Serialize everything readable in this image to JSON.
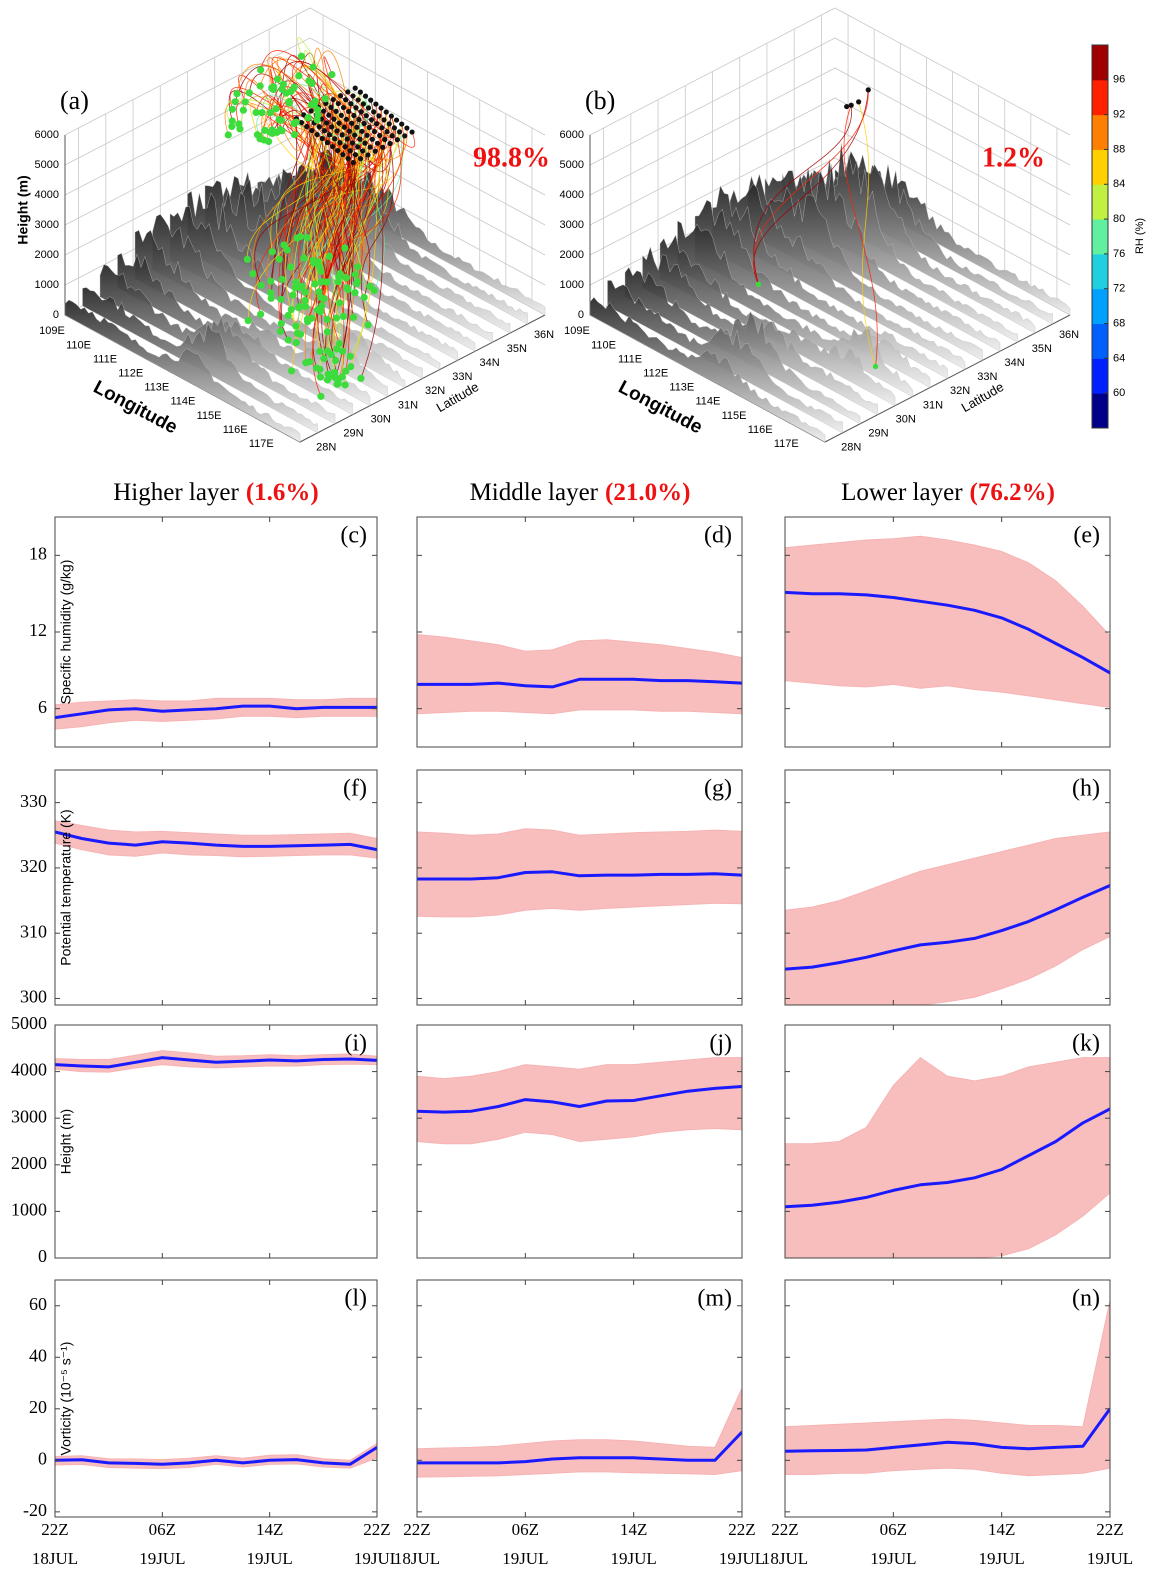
{
  "panels_3d": {
    "zlabel": "Height (m)",
    "xlabel": "Longitude",
    "ylabel": "Latitude",
    "zlim": [
      0,
      6000
    ],
    "zticks": [
      0,
      1000,
      2000,
      3000,
      4000,
      5000,
      6000
    ],
    "xticks": [
      "109E",
      "110E",
      "111E",
      "112E",
      "113E",
      "114E",
      "115E",
      "116E",
      "117E"
    ],
    "yticks": [
      "28N",
      "29N",
      "30N",
      "31N",
      "32N",
      "33N",
      "34N",
      "35N",
      "36N"
    ],
    "panels": [
      {
        "label": "(a)",
        "percent": "98.8%"
      },
      {
        "label": "(b)",
        "percent": "1.2%"
      }
    ],
    "percent_color": "#ee1111"
  },
  "colorbar": {
    "label": "RH (%)",
    "ylim": [
      56,
      100
    ],
    "yticks": [
      60,
      64,
      68,
      72,
      76,
      80,
      84,
      88,
      92,
      96
    ],
    "colors": [
      "#00008b",
      "#0020ff",
      "#0060ff",
      "#00a0ff",
      "#20d0e0",
      "#60f0a0",
      "#c0f040",
      "#ffd000",
      "#ff8000",
      "#ff2000",
      "#a00000"
    ]
  },
  "columns": [
    {
      "title": "Higher layer",
      "percent": "(1.6%)"
    },
    {
      "title": "Middle layer",
      "percent": "(21.0%)"
    },
    {
      "title": "Lower layer",
      "percent": "(76.2%)"
    }
  ],
  "time_axis": {
    "xlim": [
      0,
      24
    ],
    "xticks": [
      {
        "value": 0,
        "label": "22Z 18JUL"
      },
      {
        "value": 8,
        "label": "06Z 19JUL"
      },
      {
        "value": 16,
        "label": "14Z 19JUL"
      },
      {
        "value": 24,
        "label": "22Z 19JUL"
      }
    ]
  },
  "chart_data": [
    {
      "type": "line",
      "panel": "(c)",
      "ylabel": "Specific humidity (g/kg)",
      "ylim": [
        3,
        21
      ],
      "yticks": [
        6,
        12,
        18
      ],
      "x": [
        0,
        2,
        4,
        6,
        8,
        10,
        12,
        14,
        16,
        18,
        20,
        22,
        24
      ],
      "band": {
        "color": "#f7b3b3",
        "lower": [
          4.4,
          4.6,
          4.9,
          5.1,
          5.0,
          5.1,
          5.2,
          5.4,
          5.4,
          5.3,
          5.4,
          5.4,
          5.4
        ],
        "upper": [
          6.3,
          6.5,
          6.6,
          6.7,
          6.6,
          6.6,
          6.8,
          6.8,
          6.8,
          6.7,
          6.7,
          6.8,
          6.8
        ]
      },
      "series": [
        {
          "color": "#1a1aff",
          "values": [
            5.3,
            5.6,
            5.9,
            6.0,
            5.8,
            5.9,
            6.0,
            6.2,
            6.2,
            6.0,
            6.1,
            6.1,
            6.1
          ]
        }
      ]
    },
    {
      "type": "line",
      "panel": "(d)",
      "ylim": [
        3,
        21
      ],
      "x": [
        0,
        2,
        4,
        6,
        8,
        10,
        12,
        14,
        16,
        18,
        20,
        22,
        24
      ],
      "band": {
        "color": "#f7b3b3",
        "lower": [
          5.6,
          5.7,
          5.8,
          5.8,
          5.7,
          5.6,
          5.9,
          5.9,
          5.9,
          5.8,
          5.8,
          5.7,
          5.6
        ],
        "upper": [
          11.8,
          11.6,
          11.3,
          11.0,
          10.5,
          10.6,
          11.3,
          11.4,
          11.2,
          11.0,
          10.7,
          10.4,
          10.0
        ]
      },
      "series": [
        {
          "color": "#1a1aff",
          "values": [
            7.9,
            7.9,
            7.9,
            8.0,
            7.8,
            7.7,
            8.3,
            8.3,
            8.3,
            8.2,
            8.2,
            8.1,
            8.0
          ]
        }
      ]
    },
    {
      "type": "line",
      "panel": "(e)",
      "ylim": [
        3,
        21
      ],
      "x": [
        0,
        2,
        4,
        6,
        8,
        10,
        12,
        14,
        16,
        18,
        20,
        22,
        24
      ],
      "band": {
        "color": "#f7b3b3",
        "lower": [
          8.2,
          8.0,
          7.8,
          7.7,
          7.9,
          7.6,
          7.8,
          7.5,
          7.3,
          7.0,
          6.7,
          6.4,
          6.1
        ],
        "upper": [
          18.6,
          18.8,
          19.0,
          19.2,
          19.3,
          19.5,
          19.2,
          18.8,
          18.3,
          17.4,
          16.0,
          14.0,
          11.7
        ]
      },
      "series": [
        {
          "color": "#1a1aff",
          "values": [
            15.1,
            15.0,
            15.0,
            14.9,
            14.7,
            14.4,
            14.1,
            13.7,
            13.1,
            12.2,
            11.1,
            10.0,
            8.8
          ]
        }
      ]
    },
    {
      "type": "line",
      "panel": "(f)",
      "ylabel": "Potential temperature (K)",
      "ylim": [
        299,
        335
      ],
      "yticks": [
        300,
        310,
        320,
        330
      ],
      "x": [
        0,
        2,
        4,
        6,
        8,
        10,
        12,
        14,
        16,
        18,
        20,
        22,
        24
      ],
      "band": {
        "color": "#f7b3b3",
        "lower": [
          323.8,
          322.8,
          322.0,
          321.8,
          322.3,
          322.0,
          321.9,
          321.7,
          321.8,
          321.9,
          322.0,
          322.0,
          321.5
        ],
        "upper": [
          327.2,
          326.5,
          325.8,
          325.5,
          325.6,
          325.4,
          325.2,
          325.0,
          325.0,
          325.1,
          325.2,
          325.3,
          324.5
        ]
      },
      "series": [
        {
          "color": "#1a1aff",
          "values": [
            325.5,
            324.5,
            323.8,
            323.5,
            324.0,
            323.8,
            323.5,
            323.3,
            323.3,
            323.4,
            323.5,
            323.6,
            322.8
          ]
        }
      ]
    },
    {
      "type": "line",
      "panel": "(g)",
      "ylim": [
        299,
        335
      ],
      "x": [
        0,
        2,
        4,
        6,
        8,
        10,
        12,
        14,
        16,
        18,
        20,
        22,
        24
      ],
      "band": {
        "color": "#f7b3b3",
        "lower": [
          312.6,
          312.5,
          312.5,
          312.8,
          313.5,
          313.8,
          313.5,
          313.8,
          314.0,
          314.2,
          314.4,
          314.6,
          314.5
        ],
        "upper": [
          325.5,
          325.3,
          325.0,
          325.2,
          326.0,
          325.8,
          325.0,
          325.2,
          325.4,
          325.5,
          325.6,
          325.8,
          325.6
        ]
      },
      "series": [
        {
          "color": "#1a1aff",
          "values": [
            318.3,
            318.3,
            318.3,
            318.5,
            319.3,
            319.4,
            318.8,
            318.9,
            318.9,
            319.0,
            319.0,
            319.1,
            318.9
          ]
        }
      ]
    },
    {
      "type": "line",
      "panel": "(h)",
      "ylim": [
        299,
        335
      ],
      "x": [
        0,
        2,
        4,
        6,
        8,
        10,
        12,
        14,
        16,
        18,
        20,
        22,
        24
      ],
      "band": {
        "color": "#f7b3b3",
        "lower": [
          297.8,
          297.6,
          297.8,
          298.0,
          298.5,
          299.0,
          299.5,
          300.2,
          301.5,
          303.0,
          305.0,
          307.5,
          309.5
        ],
        "upper": [
          313.5,
          314.0,
          315.0,
          316.5,
          318.0,
          319.5,
          320.5,
          321.5,
          322.5,
          323.5,
          324.5,
          325.0,
          325.5
        ]
      },
      "series": [
        {
          "color": "#1a1aff",
          "values": [
            304.5,
            304.8,
            305.5,
            306.3,
            307.3,
            308.2,
            308.6,
            309.2,
            310.4,
            311.8,
            313.6,
            315.5,
            317.3
          ]
        }
      ]
    },
    {
      "type": "line",
      "panel": "(i)",
      "ylabel": "Height (m)",
      "ylim": [
        0,
        5000
      ],
      "yticks": [
        0,
        1000,
        2000,
        3000,
        4000,
        5000
      ],
      "x": [
        0,
        2,
        4,
        6,
        8,
        10,
        12,
        14,
        16,
        18,
        20,
        22,
        24
      ],
      "band": {
        "color": "#f7b3b3",
        "lower": [
          4050,
          4000,
          3990,
          4080,
          4150,
          4100,
          4080,
          4100,
          4120,
          4120,
          4150,
          4160,
          4150
        ],
        "upper": [
          4280,
          4260,
          4260,
          4350,
          4450,
          4400,
          4330,
          4340,
          4360,
          4340,
          4360,
          4380,
          4330
        ]
      },
      "series": [
        {
          "color": "#1a1aff",
          "values": [
            4150,
            4120,
            4100,
            4200,
            4300,
            4250,
            4200,
            4220,
            4250,
            4230,
            4260,
            4270,
            4240
          ]
        }
      ]
    },
    {
      "type": "line",
      "panel": "(j)",
      "ylim": [
        0,
        5000
      ],
      "x": [
        0,
        2,
        4,
        6,
        8,
        10,
        12,
        14,
        16,
        18,
        20,
        22,
        24
      ],
      "band": {
        "color": "#f7b3b3",
        "lower": [
          2500,
          2450,
          2450,
          2550,
          2700,
          2650,
          2500,
          2550,
          2600,
          2700,
          2750,
          2780,
          2750
        ],
        "upper": [
          3900,
          3850,
          3900,
          4000,
          4150,
          4100,
          4050,
          4150,
          4150,
          4200,
          4250,
          4300,
          4300
        ]
      },
      "series": [
        {
          "color": "#1a1aff",
          "values": [
            3150,
            3130,
            3150,
            3250,
            3400,
            3350,
            3250,
            3370,
            3380,
            3480,
            3580,
            3640,
            3680
          ]
        }
      ]
    },
    {
      "type": "line",
      "panel": "(k)",
      "ylim": [
        0,
        5000
      ],
      "x": [
        0,
        2,
        4,
        6,
        8,
        10,
        12,
        14,
        16,
        18,
        20,
        22,
        24
      ],
      "band": {
        "color": "#f7b3b3",
        "lower": [
          0,
          0,
          0,
          0,
          0,
          0,
          0,
          0,
          50,
          200,
          500,
          900,
          1400
        ],
        "upper": [
          2450,
          2450,
          2500,
          2800,
          3700,
          4300,
          3900,
          3800,
          3900,
          4100,
          4200,
          4300,
          4300
        ]
      },
      "series": [
        {
          "color": "#1a1aff",
          "values": [
            1100,
            1130,
            1200,
            1300,
            1450,
            1570,
            1620,
            1720,
            1900,
            2200,
            2500,
            2900,
            3200
          ]
        }
      ]
    },
    {
      "type": "line",
      "panel": "(l)",
      "ylabel": "Vorticity (10⁻⁵ s⁻¹)",
      "ylim": [
        -22,
        70
      ],
      "yticks": [
        -20,
        0,
        20,
        40,
        60
      ],
      "x": [
        0,
        2,
        4,
        6,
        8,
        10,
        12,
        14,
        16,
        18,
        20,
        22,
        24
      ],
      "band": {
        "color": "#f7b3b3",
        "lower": [
          -1.8,
          -1.6,
          -2.8,
          -3.0,
          -3.2,
          -2.8,
          -1.5,
          -2.6,
          -1.6,
          -1.4,
          -2.6,
          -3.0,
          1.0
        ],
        "upper": [
          1.5,
          1.8,
          0.6,
          0.5,
          0.3,
          0.8,
          1.8,
          0.8,
          2.0,
          2.2,
          0.6,
          0,
          6.5
        ]
      },
      "series": [
        {
          "color": "#1a1aff",
          "values": [
            0,
            0.2,
            -1,
            -1.2,
            -1.5,
            -1,
            0,
            -1,
            0,
            0.3,
            -1,
            -1.5,
            5
          ]
        }
      ]
    },
    {
      "type": "line",
      "panel": "(m)",
      "ylim": [
        -22,
        70
      ],
      "x": [
        0,
        2,
        4,
        6,
        8,
        10,
        12,
        14,
        16,
        18,
        20,
        22,
        24
      ],
      "band": {
        "color": "#f7b3b3",
        "lower": [
          -6.5,
          -6.4,
          -6.2,
          -6.0,
          -5.5,
          -5.0,
          -4.5,
          -4.5,
          -4.8,
          -5.0,
          -5.2,
          -5.5,
          -4.0
        ],
        "upper": [
          4.5,
          4.8,
          5.0,
          5.5,
          6.5,
          7.5,
          8.0,
          8.0,
          7.5,
          6.5,
          5.5,
          5.0,
          28.0
        ]
      },
      "series": [
        {
          "color": "#1a1aff",
          "values": [
            -1,
            -1,
            -1,
            -1,
            -0.5,
            0.5,
            1,
            1,
            1,
            0.5,
            0,
            0,
            11
          ]
        }
      ]
    },
    {
      "type": "line",
      "panel": "(n)",
      "ylim": [
        -22,
        70
      ],
      "x": [
        0,
        2,
        4,
        6,
        8,
        10,
        12,
        14,
        16,
        18,
        20,
        22,
        24
      ],
      "band": {
        "color": "#f7b3b3",
        "lower": [
          -5.5,
          -5.5,
          -5.0,
          -5.0,
          -4.0,
          -3.5,
          -3.0,
          -3.5,
          -5.0,
          -6.0,
          -5.5,
          -5.0,
          -3.0
        ],
        "upper": [
          13.0,
          13.5,
          14.0,
          14.5,
          15.0,
          15.5,
          16.0,
          15.5,
          14.5,
          13.5,
          13.5,
          13.0,
          62.0
        ]
      },
      "series": [
        {
          "color": "#1a1aff",
          "values": [
            3.5,
            3.7,
            3.8,
            4.0,
            5,
            6,
            7,
            6.5,
            5,
            4.5,
            5,
            5.5,
            20
          ]
        }
      ]
    }
  ]
}
